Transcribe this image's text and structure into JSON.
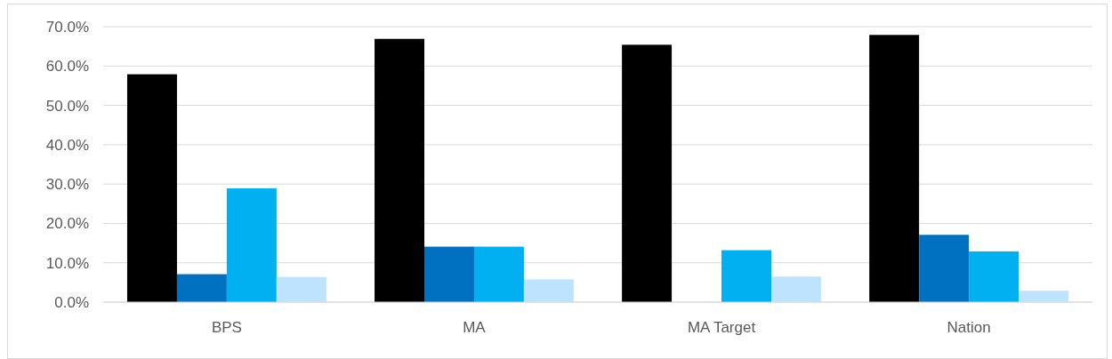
{
  "chart_data": {
    "type": "bar",
    "categories": [
      "BPS",
      "MA",
      "MA Target",
      "Nation"
    ],
    "series": [
      {
        "color": "#000000",
        "values": [
          57.9,
          66.9,
          65.4,
          67.9
        ]
      },
      {
        "color": "#0070c0",
        "values": [
          7.1,
          14.1,
          null,
          17.1
        ]
      },
      {
        "color": "#00b0f0",
        "values": [
          28.9,
          14.1,
          13.2,
          12.9
        ]
      },
      {
        "color": "#bde3ff",
        "values": [
          6.4,
          5.8,
          6.5,
          2.9
        ]
      }
    ],
    "ylim": [
      0,
      70
    ],
    "yticks": [
      {
        "value": 0,
        "label": "0.0%"
      },
      {
        "value": 10,
        "label": "10.0%"
      },
      {
        "value": 20,
        "label": "20.0%"
      },
      {
        "value": 30,
        "label": "30.0%"
      },
      {
        "value": 40,
        "label": "40.0%"
      },
      {
        "value": 50,
        "label": "50.0%"
      },
      {
        "value": 60,
        "label": "60.0%"
      },
      {
        "value": 70,
        "label": "70.0%"
      }
    ],
    "grid": "y"
  }
}
